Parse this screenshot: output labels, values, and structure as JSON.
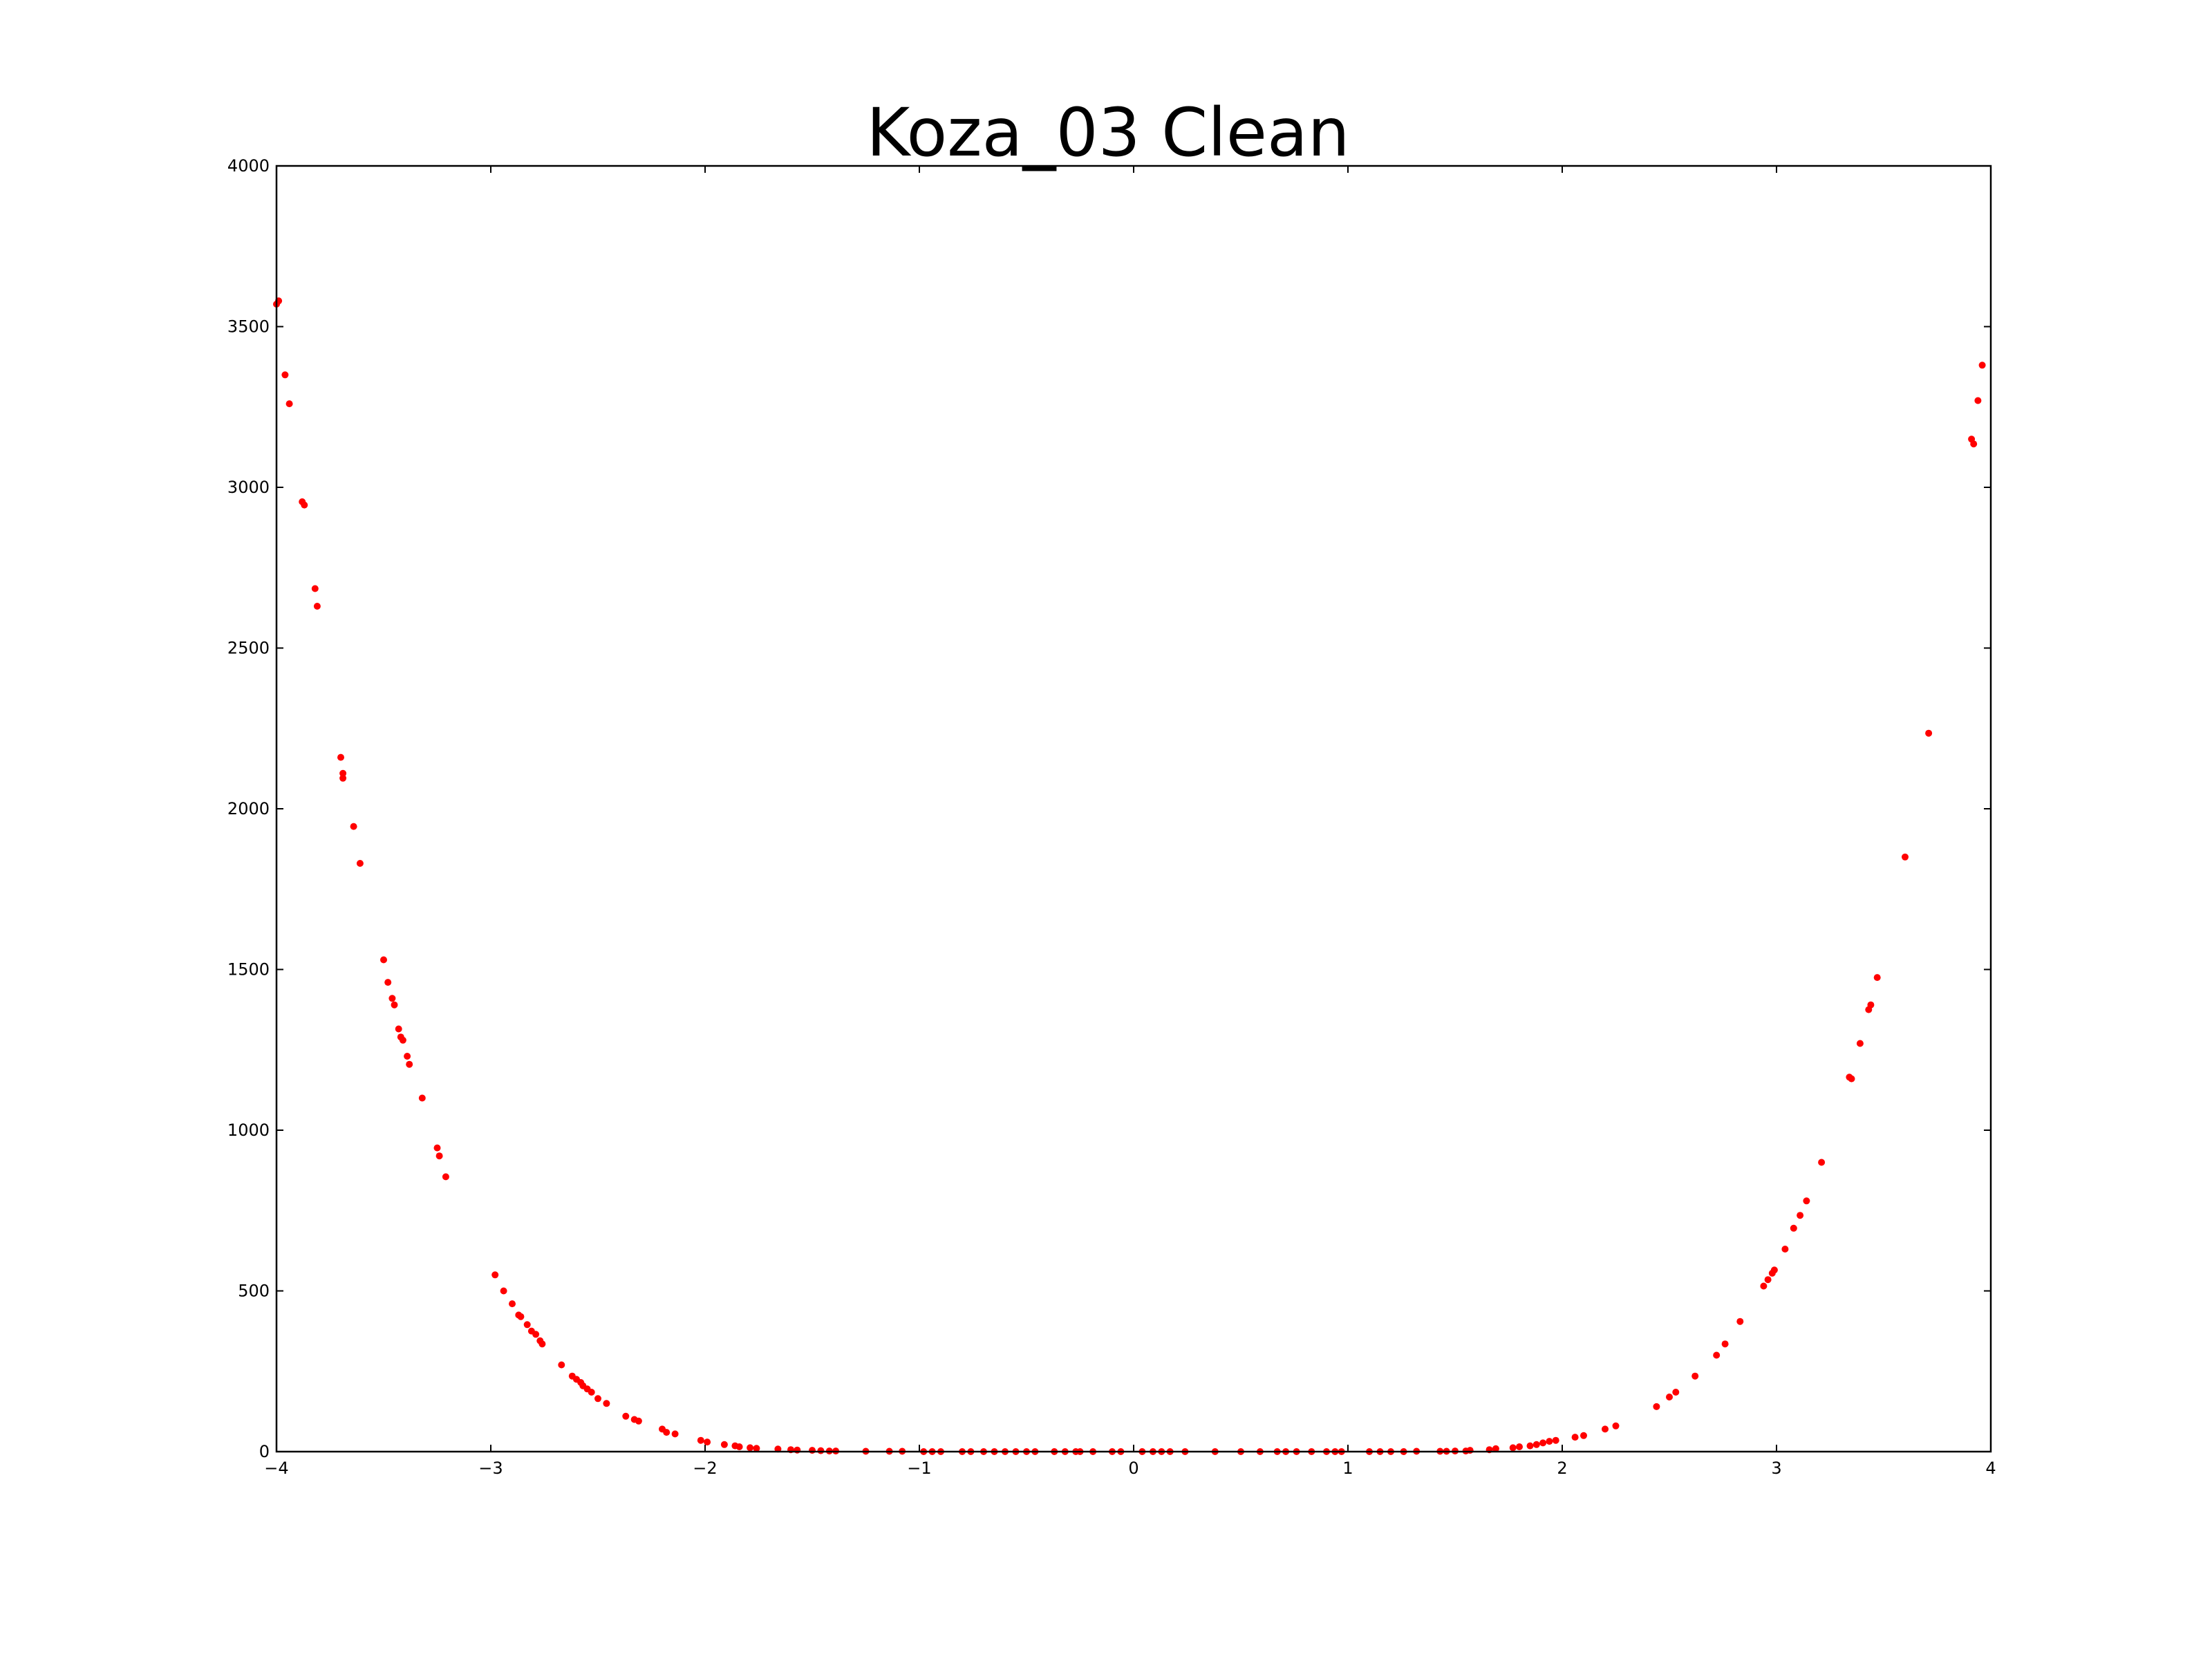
{
  "chart_data": {
    "type": "scatter",
    "title": "Koza_03 Clean",
    "xlabel": "",
    "ylabel": "",
    "xlim": [
      -4,
      4
    ],
    "ylim": [
      0,
      4000
    ],
    "xticks": [
      -4,
      -3,
      -2,
      -1,
      0,
      1,
      2,
      3,
      4
    ],
    "xtick_labels": [
      "−4",
      "−3",
      "−2",
      "−1",
      "0",
      "1",
      "2",
      "3",
      "4"
    ],
    "yticks": [
      0,
      500,
      1000,
      1500,
      2000,
      2500,
      3000,
      3500,
      4000
    ],
    "ytick_labels": [
      "0",
      "500",
      "1000",
      "1500",
      "2000",
      "2500",
      "3000",
      "3500",
      "4000"
    ],
    "grid": false,
    "legend": "none",
    "marker_color": "#ff0000",
    "series": [
      {
        "x": [
          -4.0,
          -3.99,
          -3.96,
          -3.94,
          -3.88,
          -3.87,
          -3.82,
          -3.81,
          -3.7,
          -3.69,
          -3.69,
          -3.64,
          -3.61,
          -3.5,
          -3.48,
          -3.46,
          -3.45,
          -3.43,
          -3.42,
          -3.41,
          -3.39,
          -3.38,
          -3.32,
          -3.25,
          -3.24,
          -3.21,
          -2.98,
          -2.94,
          -2.9,
          -2.87,
          -2.86,
          -2.83,
          -2.81,
          -2.79,
          -2.77,
          -2.76,
          -2.67,
          -2.62,
          -2.6,
          -2.58,
          -2.57,
          -2.55,
          -2.53,
          -2.5,
          -2.46,
          -2.37,
          -2.33,
          -2.31,
          -2.2,
          -2.18,
          -2.14,
          -2.02,
          -1.99,
          -1.91,
          -1.86,
          -1.84,
          -1.79,
          -1.76,
          -1.66,
          -1.6,
          -1.57,
          -1.5,
          -1.46,
          -1.42,
          -1.39,
          -1.25,
          -1.14,
          -1.08,
          -0.98,
          -0.94,
          -0.9,
          -0.8,
          -0.76,
          -0.7,
          -0.65,
          -0.6,
          -0.55,
          -0.5,
          -0.46,
          -0.37,
          -0.32,
          -0.27,
          -0.25,
          -0.19,
          -0.1,
          -0.06,
          0.04,
          0.09,
          0.13,
          0.17,
          0.24,
          0.38,
          0.5,
          0.59,
          0.67,
          0.71,
          0.76,
          0.83,
          0.9,
          0.94,
          0.97,
          1.1,
          1.15,
          1.2,
          1.26,
          1.32,
          1.43,
          1.46,
          1.5,
          1.55,
          1.57,
          1.66,
          1.69,
          1.77,
          1.8,
          1.85,
          1.88,
          1.91,
          1.94,
          1.97,
          2.06,
          2.1,
          2.2,
          2.25,
          2.44,
          2.5,
          2.53,
          2.62,
          2.72,
          2.76,
          2.83,
          2.94,
          2.96,
          2.98,
          2.99,
          3.04,
          3.08,
          3.11,
          3.14,
          3.21,
          3.34,
          3.35,
          3.39,
          3.43,
          3.44,
          3.47,
          3.6,
          3.71,
          3.91,
          3.92,
          3.94,
          3.96
        ],
        "y": [
          3570,
          3580,
          3350,
          3260,
          2955,
          2945,
          2685,
          2630,
          2160,
          2110,
          2095,
          1945,
          1830,
          1530,
          1460,
          1410,
          1390,
          1315,
          1290,
          1280,
          1230,
          1205,
          1100,
          945,
          920,
          855,
          550,
          500,
          460,
          425,
          420,
          395,
          375,
          365,
          345,
          335,
          270,
          235,
          225,
          215,
          205,
          195,
          185,
          165,
          150,
          110,
          100,
          95,
          70,
          60,
          55,
          35,
          30,
          22,
          18,
          15,
          12,
          10,
          8,
          6,
          5,
          4,
          3,
          2,
          2,
          1,
          1,
          1,
          0,
          0,
          0,
          0,
          0,
          0,
          0,
          0,
          0,
          0,
          0,
          0,
          0,
          0,
          0,
          0,
          0,
          0,
          0,
          0,
          0,
          0,
          0,
          0,
          0,
          0,
          0,
          0,
          0,
          0,
          0,
          0,
          0,
          0,
          0,
          0,
          0,
          1,
          1,
          1,
          2,
          2,
          4,
          6,
          9,
          12,
          15,
          18,
          22,
          27,
          32,
          35,
          45,
          50,
          70,
          80,
          140,
          170,
          185,
          235,
          300,
          335,
          405,
          515,
          535,
          555,
          565,
          630,
          695,
          735,
          780,
          900,
          1165,
          1160,
          1270,
          1375,
          1390,
          1475,
          1850,
          2235,
          3150,
          3135,
          3270,
          3380
        ]
      }
    ]
  }
}
